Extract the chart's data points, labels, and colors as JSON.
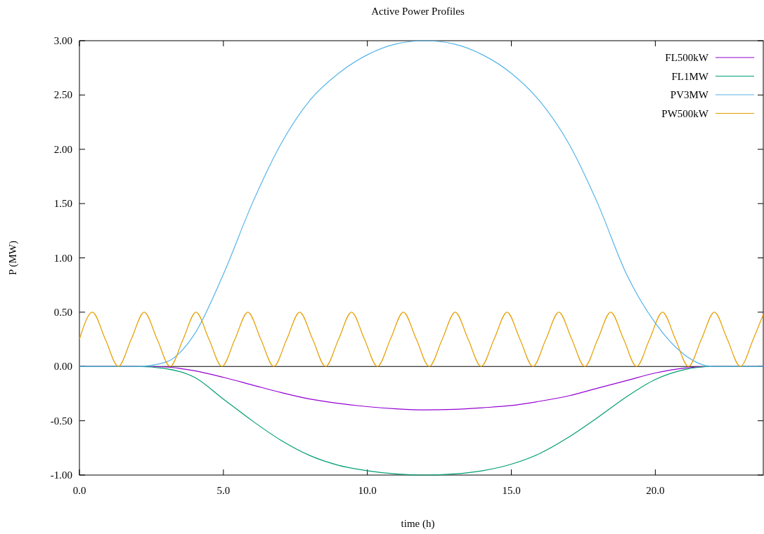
{
  "chart_data": {
    "type": "line",
    "title": "Active Power Profiles",
    "xlabel": "time (h)",
    "ylabel": "P (MW)",
    "xlim": [
      0,
      23.75
    ],
    "ylim": [
      -1,
      3
    ],
    "xticks": [
      {
        "value": 0,
        "label": "0.0"
      },
      {
        "value": 5,
        "label": "5.0"
      },
      {
        "value": 10,
        "label": "10.0"
      },
      {
        "value": 15,
        "label": "15.0"
      },
      {
        "value": 20,
        "label": "20.0"
      }
    ],
    "yticks": [
      {
        "value": -1,
        "label": "-1.00"
      },
      {
        "value": -0.5,
        "label": "-0.50"
      },
      {
        "value": 0,
        "label": "0.00"
      },
      {
        "value": 0.5,
        "label": "0.50"
      },
      {
        "value": 1,
        "label": "1.00"
      },
      {
        "value": 1.5,
        "label": "1.50"
      },
      {
        "value": 2,
        "label": "2.00"
      },
      {
        "value": 2.5,
        "label": "2.50"
      },
      {
        "value": 3,
        "label": "3.00"
      }
    ],
    "grid": false,
    "legend": "top right",
    "line_style": "solid",
    "marker": "none",
    "ref_lines": [
      {
        "axis": "y",
        "value": 0,
        "color": "#000000"
      }
    ],
    "series": [
      {
        "name": "FL500kW",
        "color": "#9400d3",
        "x": [
          0,
          2,
          3,
          4,
          5,
          6,
          7,
          8,
          9,
          10,
          11,
          12,
          13,
          14,
          15,
          16,
          17,
          18,
          19,
          20,
          21,
          22,
          23.75
        ],
        "values": [
          0,
          0,
          -0.005,
          -0.04,
          -0.1,
          -0.17,
          -0.24,
          -0.3,
          -0.34,
          -0.37,
          -0.39,
          -0.4,
          -0.395,
          -0.38,
          -0.36,
          -0.32,
          -0.27,
          -0.2,
          -0.13,
          -0.06,
          -0.015,
          0,
          0
        ]
      },
      {
        "name": "FL1MW",
        "color": "#009e73",
        "x": [
          0,
          2,
          3,
          4,
          5,
          6,
          7,
          8,
          9,
          10,
          11,
          12,
          13,
          14,
          15,
          16,
          17,
          18,
          19,
          20,
          21,
          22,
          23.75
        ],
        "values": [
          0,
          0,
          -0.02,
          -0.1,
          -0.3,
          -0.5,
          -0.68,
          -0.82,
          -0.91,
          -0.96,
          -0.99,
          -1,
          -0.99,
          -0.96,
          -0.9,
          -0.8,
          -0.65,
          -0.47,
          -0.28,
          -0.12,
          -0.03,
          0,
          0
        ]
      },
      {
        "name": "PV3MW",
        "color": "#56b4e9",
        "x": [
          0,
          2,
          3,
          4,
          5,
          6,
          7,
          8,
          9,
          10,
          11,
          12,
          13,
          14,
          15,
          16,
          17,
          18,
          19,
          20,
          21,
          21.5,
          22,
          23.75
        ],
        "values": [
          0,
          0,
          0.04,
          0.3,
          0.85,
          1.5,
          2.05,
          2.45,
          2.7,
          2.87,
          2.97,
          3,
          2.97,
          2.87,
          2.7,
          2.44,
          2.05,
          1.5,
          0.85,
          0.4,
          0.11,
          0.03,
          0,
          0
        ]
      },
      {
        "name": "PW500kW",
        "color": "#e69f00",
        "x": [
          0,
          0.45,
          0.9,
          1.35,
          1.8,
          2.25,
          2.7,
          3.15,
          3.6,
          4.05,
          4.5,
          4.95,
          5.4,
          5.85,
          6.3,
          6.75,
          7.2,
          7.65,
          8.1,
          8.55,
          9,
          9.45,
          9.9,
          10.35,
          10.8,
          11.25,
          11.7,
          12.15,
          12.6,
          13.05,
          13.5,
          13.95,
          14.4,
          14.85,
          15.3,
          15.75,
          16.2,
          16.65,
          17.1,
          17.55,
          18,
          18.45,
          18.9,
          19.35,
          19.8,
          20.25,
          20.7,
          21.15,
          21.6,
          22.05,
          22.5,
          22.95,
          23.4,
          23.75
        ],
        "values": [
          0.25,
          0.5,
          0.25,
          0,
          0.25,
          0.5,
          0.25,
          0,
          0.25,
          0.5,
          0.25,
          0,
          0.25,
          0.5,
          0.25,
          0,
          0.25,
          0.5,
          0.25,
          0,
          0.25,
          0.5,
          0.25,
          0,
          0.25,
          0.5,
          0.25,
          0,
          0.25,
          0.5,
          0.25,
          0,
          0.25,
          0.5,
          0.25,
          0,
          0.25,
          0.5,
          0.25,
          0,
          0.25,
          0.5,
          0.25,
          0,
          0.25,
          0.5,
          0.25,
          0,
          0.25,
          0.5,
          0.25,
          0,
          0.25,
          0.48
        ]
      }
    ]
  }
}
